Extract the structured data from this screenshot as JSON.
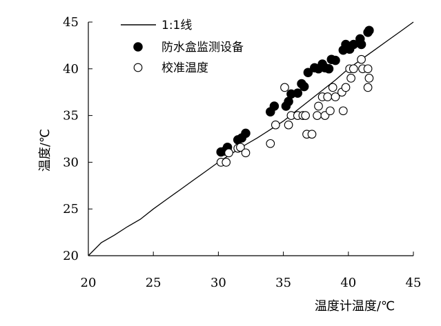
{
  "chart_data": {
    "type": "scatter",
    "xlabel": "温度计温度/℃",
    "ylabel": "温度/℃",
    "xlim": [
      20,
      45
    ],
    "ylim": [
      20,
      45
    ],
    "xticks": [
      "20",
      "25",
      "30",
      "35",
      "40",
      "45"
    ],
    "yticks": [
      "20",
      "25",
      "30",
      "35",
      "40",
      "45"
    ],
    "grid": false,
    "legend_position": "top-left",
    "legend": [
      "1:1线",
      "防水盒监测设备",
      "校准温度"
    ],
    "reference_line": {
      "name": "1:1线",
      "points": [
        [
          20,
          20
        ],
        [
          21,
          21.4
        ],
        [
          22,
          22.2
        ],
        [
          23,
          23.1
        ],
        [
          24,
          23.9
        ],
        [
          25,
          25
        ],
        [
          26,
          26
        ],
        [
          27,
          27
        ],
        [
          28,
          28
        ],
        [
          29,
          29
        ],
        [
          30,
          30
        ],
        [
          31,
          30.9
        ],
        [
          32,
          31.8
        ],
        [
          33,
          32.6
        ],
        [
          34,
          33.5
        ],
        [
          35,
          34.4
        ],
        [
          36,
          35.5
        ],
        [
          37,
          36.6
        ],
        [
          38,
          37.7
        ],
        [
          39,
          38.8
        ],
        [
          40,
          40
        ],
        [
          41,
          41
        ],
        [
          42,
          42
        ],
        [
          43,
          43
        ],
        [
          44,
          44
        ],
        [
          45,
          45
        ]
      ]
    },
    "series": [
      {
        "name": "防水盒监测设备",
        "marker": "filled",
        "points": [
          [
            30.2,
            31.1
          ],
          [
            30.5,
            31.2
          ],
          [
            30.7,
            31.6
          ],
          [
            31.5,
            32.4
          ],
          [
            31.8,
            32.6
          ],
          [
            32.1,
            33.1
          ],
          [
            34.0,
            35.4
          ],
          [
            34.3,
            36.0
          ],
          [
            35.2,
            36.0
          ],
          [
            35.4,
            36.5
          ],
          [
            35.6,
            37.3
          ],
          [
            36.1,
            37.4
          ],
          [
            36.4,
            38.4
          ],
          [
            36.6,
            38.1
          ],
          [
            36.9,
            39.6
          ],
          [
            37.4,
            40.1
          ],
          [
            37.7,
            40.0
          ],
          [
            38.0,
            40.5
          ],
          [
            38.2,
            40.1
          ],
          [
            38.5,
            40.0
          ],
          [
            38.7,
            41.0
          ],
          [
            39.0,
            40.9
          ],
          [
            39.6,
            42.0
          ],
          [
            39.8,
            42.6
          ],
          [
            40.1,
            42.1
          ],
          [
            40.4,
            42.6
          ],
          [
            40.9,
            43.2
          ],
          [
            41.0,
            42.6
          ],
          [
            41.5,
            43.9
          ],
          [
            41.6,
            44.1
          ]
        ]
      },
      {
        "name": "校准温度",
        "marker": "hollow",
        "points": [
          [
            30.2,
            30.0
          ],
          [
            30.6,
            30.0
          ],
          [
            30.8,
            31.0
          ],
          [
            31.5,
            31.5
          ],
          [
            31.7,
            31.6
          ],
          [
            32.1,
            31.0
          ],
          [
            34.0,
            32.0
          ],
          [
            34.4,
            34.0
          ],
          [
            35.1,
            38.0
          ],
          [
            35.4,
            34.0
          ],
          [
            35.6,
            35.0
          ],
          [
            36.1,
            35.0
          ],
          [
            36.5,
            35.0
          ],
          [
            36.7,
            35.0
          ],
          [
            36.8,
            33.0
          ],
          [
            37.2,
            33.0
          ],
          [
            37.6,
            35.0
          ],
          [
            37.7,
            36.0
          ],
          [
            38.0,
            37.0
          ],
          [
            38.2,
            35.0
          ],
          [
            38.4,
            37.0
          ],
          [
            38.6,
            35.5
          ],
          [
            38.8,
            38.0
          ],
          [
            39.0,
            37.0
          ],
          [
            39.5,
            37.5
          ],
          [
            39.6,
            35.5
          ],
          [
            39.8,
            38.0
          ],
          [
            40.1,
            40.0
          ],
          [
            40.2,
            39.0
          ],
          [
            40.4,
            40.0
          ],
          [
            41.0,
            41.0
          ],
          [
            41.1,
            40.0
          ],
          [
            41.5,
            40.0
          ],
          [
            41.5,
            38.0
          ],
          [
            41.6,
            39.0
          ]
        ]
      }
    ]
  }
}
